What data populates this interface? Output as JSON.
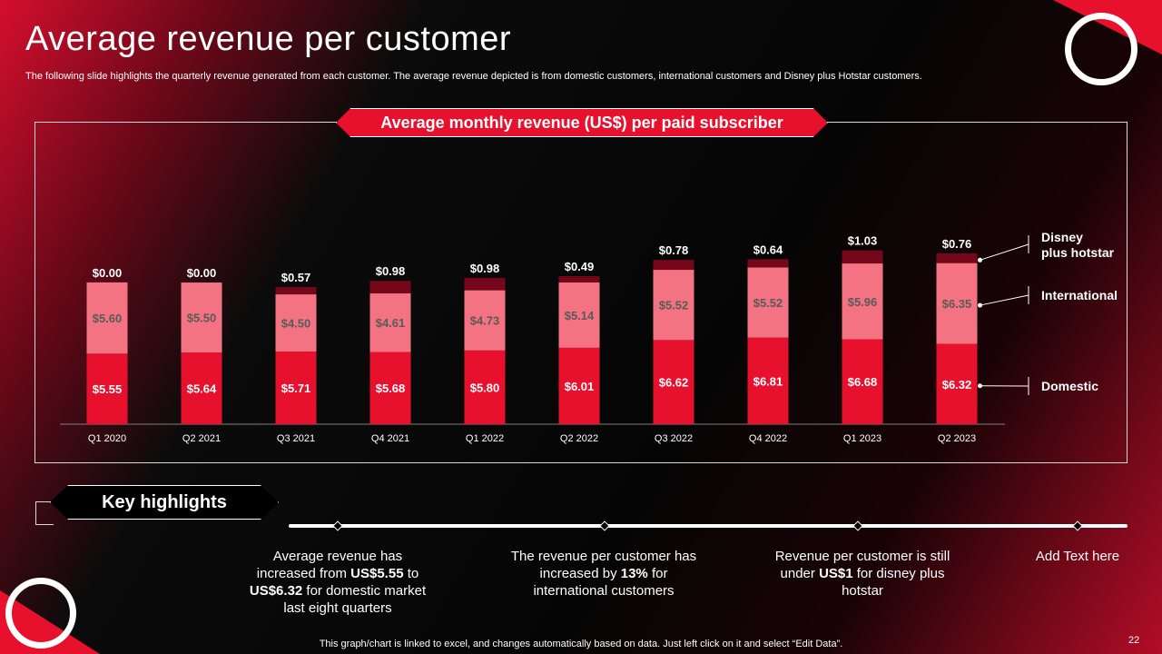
{
  "slide": {
    "title": "Average revenue per customer",
    "subtitle": "The following slide highlights the quarterly revenue generated from each customer. The average revenue depicted is from domestic customers, international customers and Disney plus Hotstar customers.",
    "page_number": "22",
    "footer_note": "This graph/chart is linked to excel,  and changes automatically based on data. Just left click on it and select “Edit Data”."
  },
  "chart_data": {
    "type": "bar",
    "stacked": true,
    "title": "Average monthly revenue (US$) per paid subscriber",
    "categories": [
      "Q1 2020",
      "Q2 2021",
      "Q3 2021",
      "Q4 2021",
      "Q1 2022",
      "Q2 2022",
      "Q3 2022",
      "Q4 2022",
      "Q1 2023",
      "Q2 2023"
    ],
    "series": [
      {
        "name": "Domestic",
        "color": "#e8112d",
        "label_color": "#ffffff",
        "values": [
          5.55,
          5.64,
          5.71,
          5.68,
          5.8,
          6.01,
          6.62,
          6.81,
          6.68,
          6.32
        ],
        "labels": [
          "$5.55",
          "$5.64",
          "$5.71",
          "$5.68",
          "$5.80",
          "$6.01",
          "$6.62",
          "$6.81",
          "$6.68",
          "$6.32"
        ]
      },
      {
        "name": "International",
        "color": "#f37383",
        "label_color": "#5a5a5a",
        "values": [
          5.6,
          5.5,
          4.5,
          4.61,
          4.73,
          5.14,
          5.52,
          5.52,
          5.96,
          6.35
        ],
        "labels": [
          "$5.60",
          "$5.50",
          "$4.50",
          "$4.61",
          "$4.73",
          "$5.14",
          "$5.52",
          "$5.52",
          "$5.96",
          "$6.35"
        ]
      },
      {
        "name": "Disney plus hotstar",
        "color": "#75071a",
        "label_color": "#ffffff",
        "values": [
          0.0,
          0.0,
          0.57,
          0.98,
          0.98,
          0.49,
          0.78,
          0.64,
          1.03,
          0.76
        ],
        "labels": [
          "$0.00",
          "$0.00",
          "$0.57",
          "$0.98",
          "$0.98",
          "$0.49",
          "$0.78",
          "$0.64",
          "$1.03",
          "$0.76"
        ]
      }
    ],
    "legend": [
      {
        "lines": [
          "Disney",
          "plus hotstar"
        ]
      },
      {
        "lines": [
          "International"
        ]
      },
      {
        "lines": [
          "Domestic"
        ]
      }
    ],
    "xlabel": "",
    "ylabel": "",
    "ylim": [
      0,
      15
    ],
    "grid": false,
    "legend_position": "right"
  },
  "highlights": {
    "header": "Key highlights",
    "items": [
      {
        "parts": [
          {
            "t": "Average revenue has increased from "
          },
          {
            "t": "US$5.55",
            "b": true
          },
          {
            "t": " to "
          },
          {
            "t": "US$6.32",
            "b": true
          },
          {
            "t": " for domestic market last eight quarters"
          }
        ]
      },
      {
        "parts": [
          {
            "t": "The revenue per customer has increased by "
          },
          {
            "t": "13%",
            "b": true
          },
          {
            "t": " for international customers"
          }
        ]
      },
      {
        "parts": [
          {
            "t": "Revenue per customer is still under "
          },
          {
            "t": "US$1",
            "b": true
          },
          {
            "t": " for disney plus hotstar"
          }
        ]
      },
      {
        "parts": [
          {
            "t": "Add Text here"
          }
        ]
      }
    ]
  }
}
